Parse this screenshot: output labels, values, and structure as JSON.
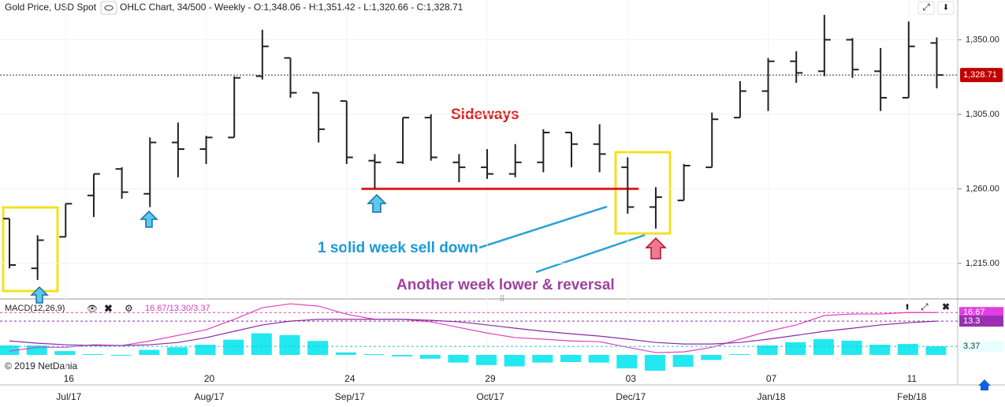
{
  "chart_data": [
    {
      "type": "ohlc",
      "title": "Gold Price, USD Spot",
      "subtitle": "OHLC Chart, 34/500 - Weekly - O:1,348.06 - H:1,351.42 - L:1,320.66 - C:1,328.71",
      "categories": [
        null,
        null,
        "16",
        null,
        null,
        null,
        null,
        "20",
        null,
        null,
        null,
        null,
        "24",
        null,
        null,
        null,
        null,
        "29",
        null,
        null,
        null,
        null,
        "03",
        null,
        null,
        null,
        null,
        "07",
        null,
        null,
        null,
        null,
        "11",
        null
      ],
      "category_months": [
        null,
        null,
        "Jul/17",
        null,
        null,
        null,
        null,
        "Aug/17",
        null,
        null,
        null,
        null,
        "Sep/17",
        null,
        null,
        null,
        null,
        "Oct/17",
        null,
        null,
        null,
        null,
        "Dec/17",
        null,
        null,
        null,
        null,
        "Jan/18",
        null,
        null,
        null,
        null,
        "Feb/18",
        null
      ],
      "open": [
        1242,
        1212,
        1231,
        1256,
        1272,
        1257,
        1288,
        1284,
        1291,
        1328,
        1339,
        1318,
        1313,
        1277,
        1276,
        1303,
        1276,
        1273,
        1269,
        1276,
        1294,
        1287,
        1273,
        1249,
        1253,
        1273,
        1303,
        1319,
        1337,
        1331,
        1350,
        1331,
        1315,
        1348.06
      ],
      "high": [
        1242,
        1232,
        1251,
        1269,
        1273,
        1291,
        1300,
        1292,
        1328,
        1356,
        1339,
        1318,
        1313,
        1281,
        1303,
        1305,
        1281,
        1284,
        1287,
        1296,
        1294,
        1299,
        1279,
        1261,
        1275,
        1306,
        1325,
        1339,
        1343,
        1365,
        1351,
        1345,
        1361,
        1351.42
      ],
      "low": [
        1212,
        1205,
        1231,
        1243,
        1254,
        1249,
        1267,
        1275,
        1291,
        1326,
        1315,
        1288,
        1275,
        1260,
        1275,
        1277,
        1264,
        1266,
        1267,
        1270,
        1273,
        1270,
        1245,
        1236,
        1253,
        1273,
        1303,
        1307,
        1324,
        1328,
        1327,
        1307,
        1315,
        1320.66
      ],
      "close": [
        1214,
        1229,
        1251,
        1269,
        1258,
        1288,
        1284,
        1291,
        1327,
        1346,
        1318,
        1296,
        1279,
        1276,
        1303,
        1279,
        1273,
        1269,
        1276,
        1294,
        1287,
        1281,
        1249,
        1255,
        1274,
        1302,
        1319,
        1337,
        1330,
        1350,
        1332,
        1315,
        1346,
        1328.71
      ],
      "color": "#222222",
      "last_price_label": "1,328.71",
      "ylim": [
        1194,
        1374
      ],
      "yticks": [
        {
          "value": 1215,
          "label": "1,215.00"
        },
        {
          "value": 1260,
          "label": "1,260.00"
        },
        {
          "value": 1305,
          "label": "1,305.00"
        },
        {
          "value": 1350,
          "label": "1,350.00"
        }
      ],
      "grid": true,
      "support_level": 1260,
      "annotations": [
        "Sideways",
        "1 solid week sell down",
        "Another week lower & reversal"
      ],
      "copyright": "© 2019 NetDania"
    },
    {
      "type": "macd",
      "title": "MACD(12,26,9)",
      "values_text": "16.67/13.30/3.37",
      "series": [
        {
          "name": "MACD",
          "color": "#e040c0",
          "values": [
            1.5,
            3,
            3,
            4,
            3.7,
            5.5,
            7.7,
            9.9,
            14,
            18.6,
            20.1,
            19.2,
            16,
            14,
            14,
            13,
            10.8,
            8.6,
            6.8,
            6.2,
            5.5,
            5.2,
            3,
            0.9,
            1.2,
            3,
            6.2,
            9.3,
            11.8,
            15.5,
            16.1,
            16.1,
            16.7,
            16.67
          ]
        },
        {
          "name": "Signal",
          "color": "#8a2aa8",
          "values": [
            5.5,
            4.6,
            4,
            3.7,
            3.7,
            4,
            4.9,
            6.8,
            9.3,
            11.8,
            13.3,
            14,
            14,
            14,
            14,
            13.6,
            13,
            11.8,
            10.5,
            9.3,
            8.3,
            7.4,
            6.2,
            4.9,
            4.3,
            4.3,
            4.9,
            6.2,
            7.7,
            9.3,
            10.5,
            11.8,
            12.7,
            13.3
          ]
        },
        {
          "name": "Histogram",
          "color": "#22e8f0",
          "values": [
            3.7,
            3.7,
            1.5,
            0.3,
            0,
            2,
            3,
            4,
            6,
            8.5,
            7.8,
            5.5,
            1,
            0.3,
            -0.6,
            -1.5,
            -3,
            -4,
            -4.5,
            -3,
            -2.8,
            -3,
            -5.3,
            -6.2,
            -4.7,
            -2,
            0.3,
            3.7,
            5,
            6.2,
            5.6,
            4,
            4.3,
            3.37
          ]
        }
      ],
      "ylim": [
        -11.8,
        21.4
      ]
    }
  ]
}
